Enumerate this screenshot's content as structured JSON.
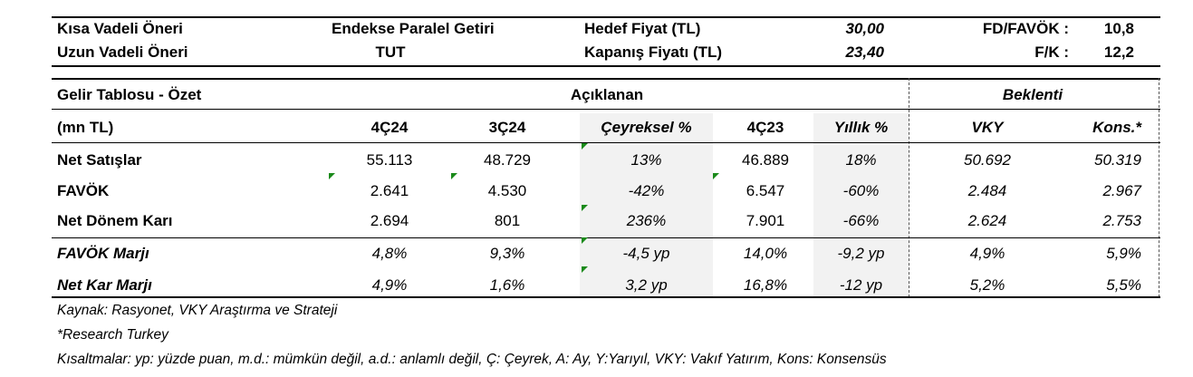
{
  "header": {
    "short_term_label": "Kısa Vadeli Öneri",
    "short_term_value": "Endekse Paralel Getiri",
    "long_term_label": "Uzun Vadeli Öneri",
    "long_term_value": "TUT",
    "target_price_label": "Hedef Fiyat (TL)",
    "target_price_value": "30,00",
    "close_price_label": "Kapanış Fiyatı (TL)",
    "close_price_value": "23,40",
    "ev_ebitda_label": "FD/FAVÖK :",
    "ev_ebitda_value": "10,8",
    "pe_label": "F/K :",
    "pe_value": "12,2"
  },
  "table": {
    "title": "Gelir Tablosu - Özet",
    "announced_label": "Açıklanan",
    "expected_label": "Beklenti",
    "unit_label": "(mn TL)",
    "columns": [
      "4Ç24",
      "3Ç24",
      "Çeyreksel %",
      "4Ç23",
      "Yıllık %",
      "VKY",
      "Kons.*"
    ],
    "rows": [
      {
        "label": "Net Satışlar",
        "values": [
          "55.113",
          "48.729",
          "13%",
          "46.889",
          "18%",
          "50.692",
          "50.319"
        ]
      },
      {
        "label": "FAVÖK",
        "values": [
          "2.641",
          "4.530",
          "-42%",
          "6.547",
          "-60%",
          "2.484",
          "2.967"
        ]
      },
      {
        "label": "Net Dönem Karı",
        "values": [
          "2.694",
          "801",
          "236%",
          "7.901",
          "-66%",
          "2.624",
          "2.753"
        ]
      },
      {
        "label": "FAVÖK Marjı",
        "values": [
          "4,8%",
          "9,3%",
          "-4,5 yp",
          "14,0%",
          "-9,2 yp",
          "4,9%",
          "5,9%"
        ]
      },
      {
        "label": "Net Kar Marjı",
        "values": [
          "4,9%",
          "1,6%",
          "3,2 yp",
          "16,8%",
          "-12 yp",
          "5,2%",
          "5,5%"
        ]
      }
    ]
  },
  "footer": {
    "source": "Kaynak: Rasyonet, VKY Araştırma ve Strateji",
    "note": "*Research Turkey",
    "abbreviations": "Kısaltmalar: yp: yüzde puan, m.d.: mümkün değil, a.d.: anlamlı değil, Ç: Çeyrek, A: Ay, Y:Yarıyıl, VKY: Vakıf Yatırım, Kons: Konsensüs"
  },
  "colors": {
    "comment_marker": "#1a8a1a",
    "shade": "#f2f2f2"
  }
}
